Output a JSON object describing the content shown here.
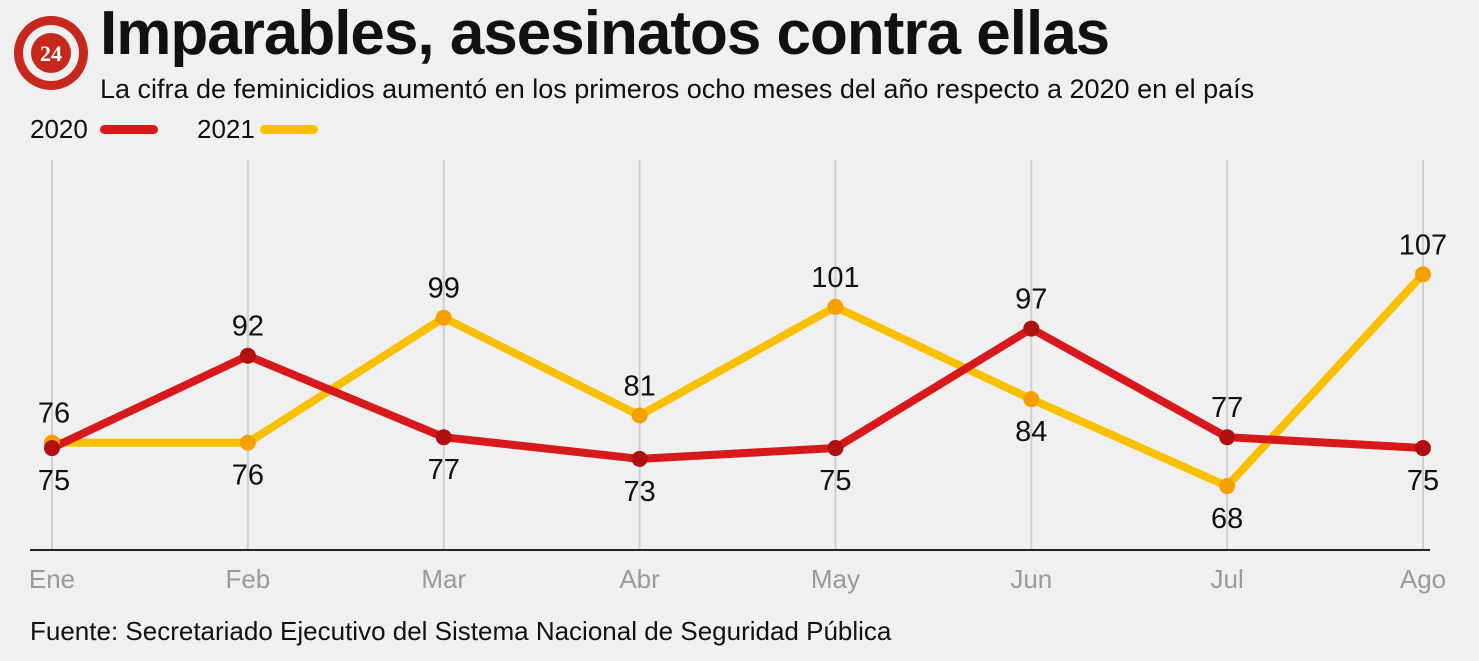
{
  "header": {
    "logo_text": "24",
    "title": "Imparables, asesinatos contra ellas",
    "subtitle": "La cifra de feminicidios aumentó en los primeros ocho meses del año respecto a 2020 en el país"
  },
  "legend": [
    {
      "label": "2020",
      "color": "#d7191c"
    },
    {
      "label": "2021",
      "color": "#f9c000"
    }
  ],
  "source": "Fuente: Secretariado Ejecutivo del Sistema Nacional de Seguridad Pública",
  "chart_data": {
    "type": "line",
    "title": "Imparables, asesinatos contra ellas",
    "subtitle": "La cifra de feminicidios aumentó en los primeros ocho meses del año respecto a 2020 en el país",
    "categories": [
      "Ene",
      "Feb",
      "Mar",
      "Abr",
      "May",
      "Jun",
      "Jul",
      "Ago"
    ],
    "series": [
      {
        "name": "2020",
        "color": "#d7191c",
        "marker_color": "#b01010",
        "values": [
          75,
          92,
          77,
          73,
          75,
          97,
          77,
          75
        ]
      },
      {
        "name": "2021",
        "color": "#f9c000",
        "marker_color": "#f59f00",
        "values": [
          76,
          76,
          99,
          81,
          101,
          84,
          68,
          107
        ]
      }
    ],
    "xlabel": "",
    "ylabel": "",
    "ylim": [
      60,
      110
    ],
    "grid": "vertical",
    "legend_position": "top-left"
  }
}
